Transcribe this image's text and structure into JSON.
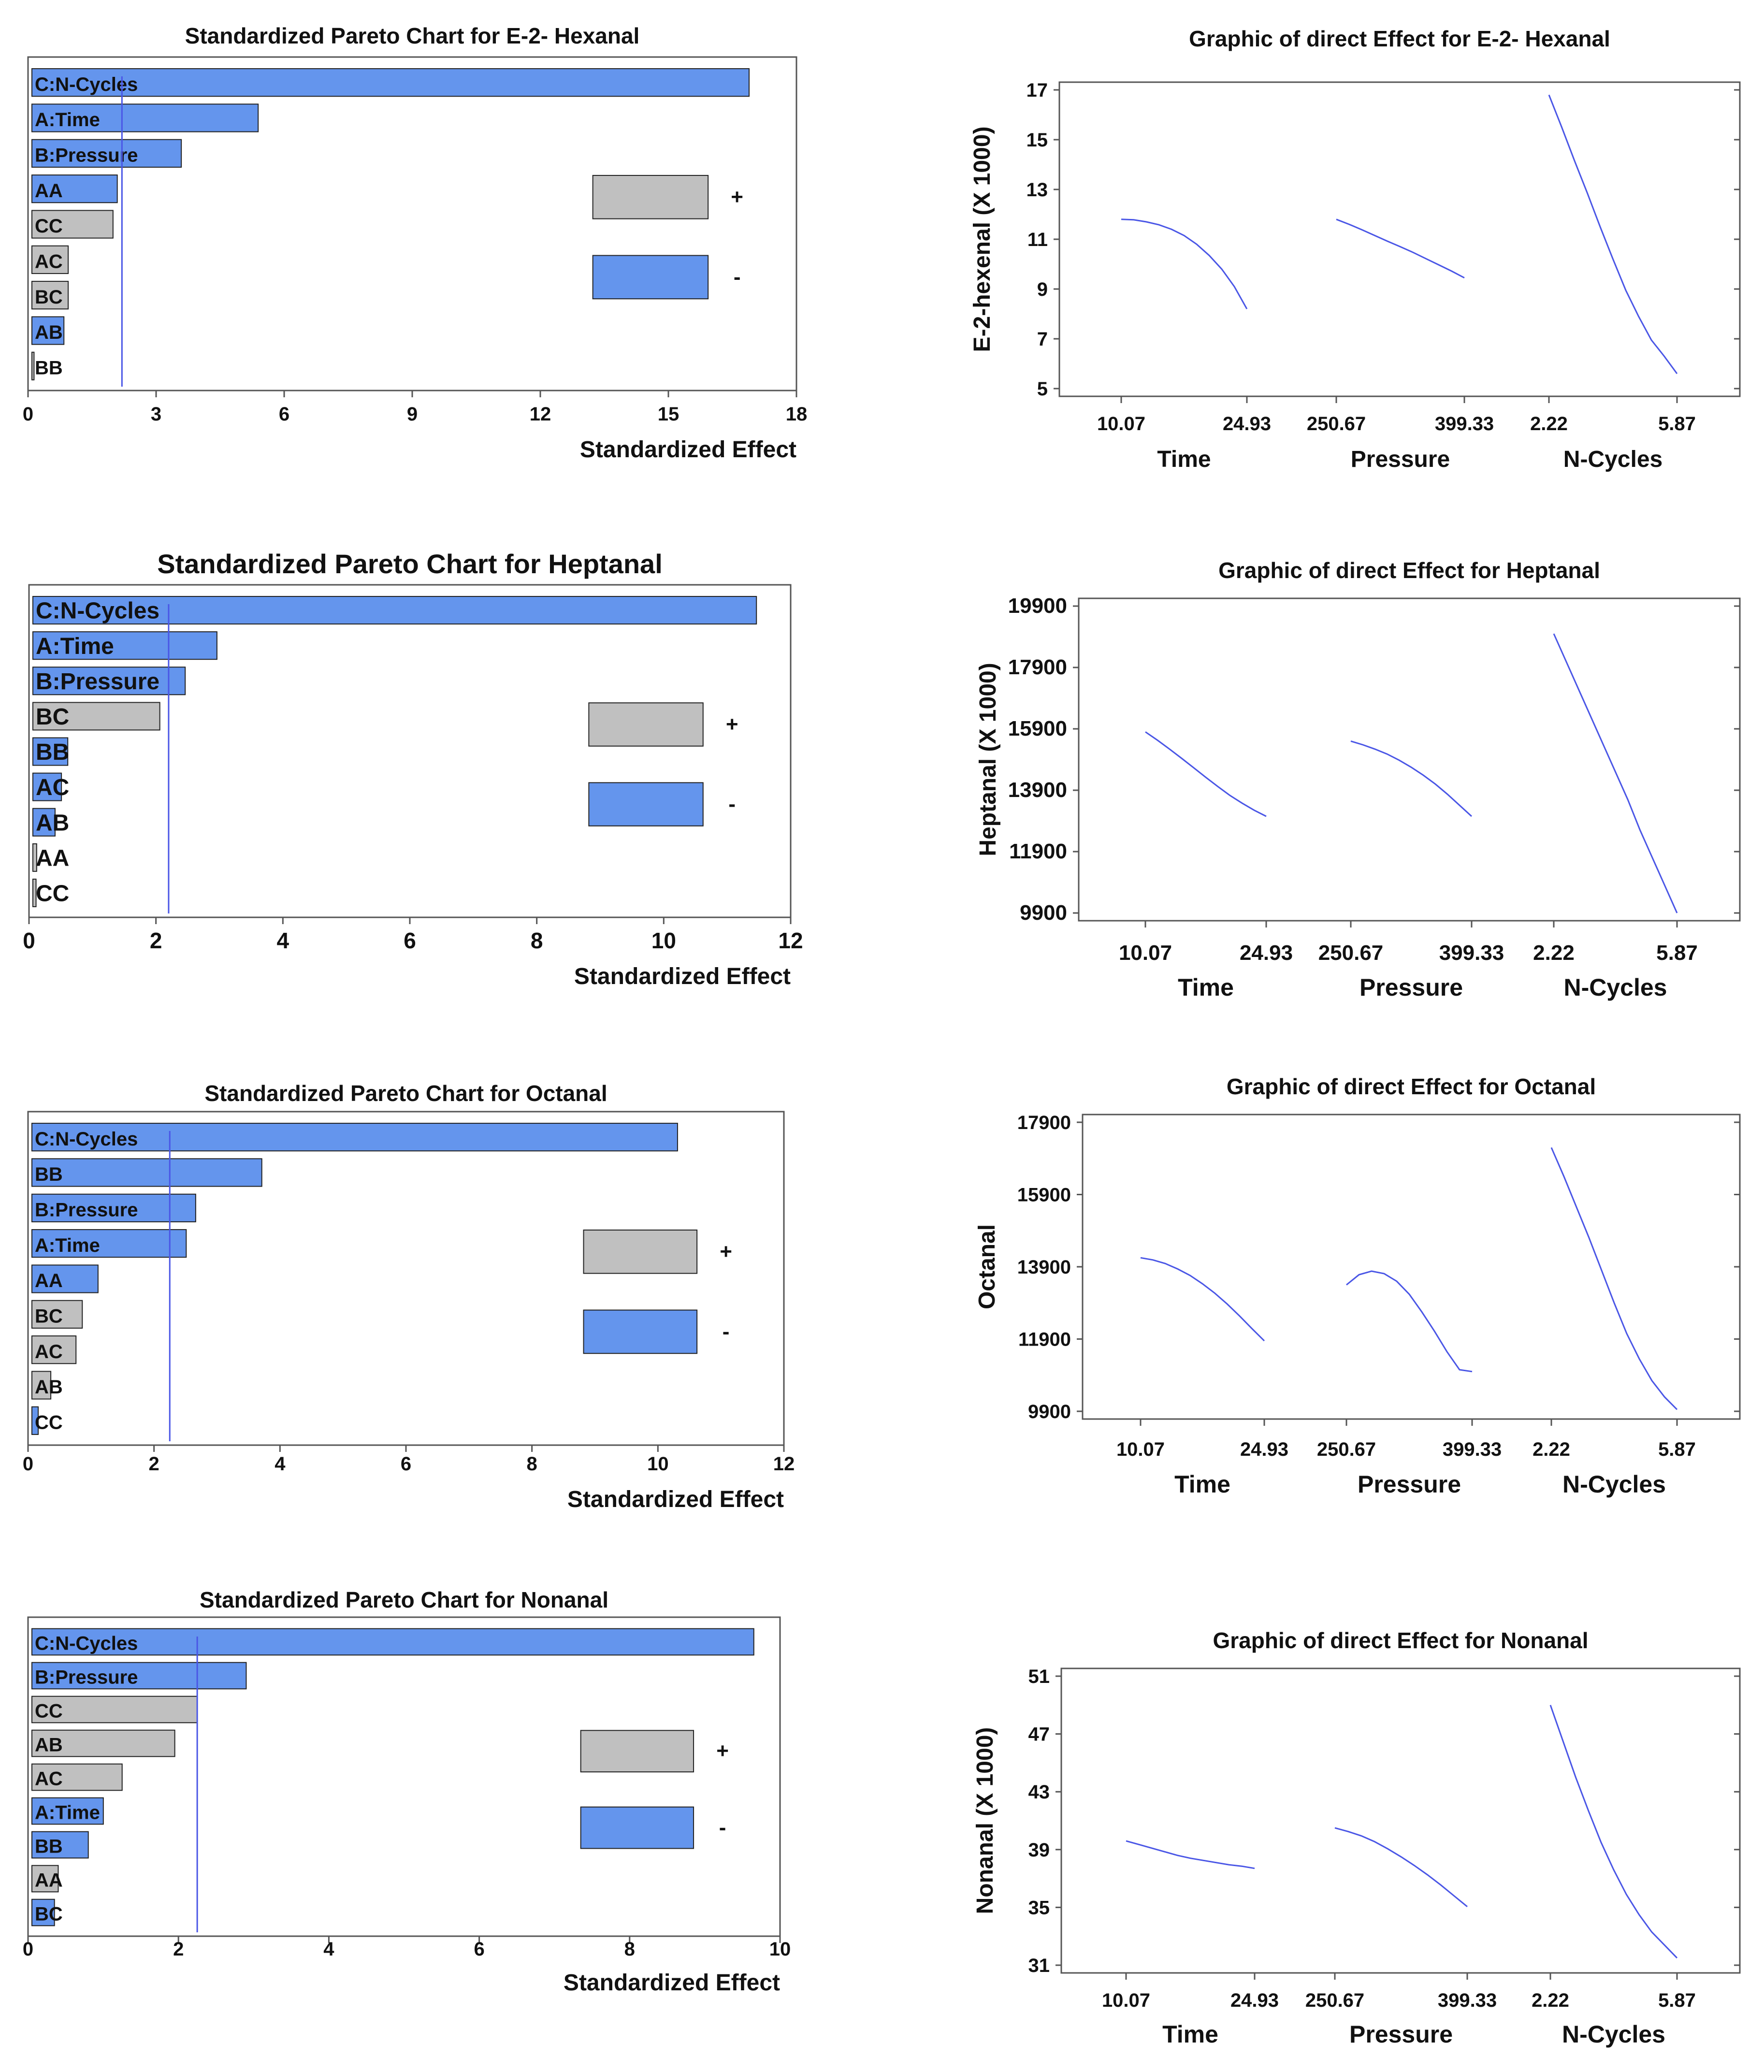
{
  "colors": {
    "positive": "#c0c0c0",
    "negative": "#6495ed",
    "line": "#4a56e6",
    "axis": "#555555",
    "text": "#111111"
  },
  "chart_data": [
    {
      "type": "bar",
      "kind": "pareto",
      "title": "Standardized Pareto Chart for  E-2- Hexanal",
      "xlabel": "Standardized Effect",
      "xlim": [
        0,
        18
      ],
      "xticks": [
        0,
        3,
        6,
        9,
        12,
        15,
        18
      ],
      "xtick_labels": [
        "0",
        "3",
        "6",
        "9",
        "12",
        "15",
        "18"
      ],
      "reference_line": 2.2,
      "categories": [
        "C:N-Cycles",
        "A:Time",
        "B:Pressure",
        "AA",
        "CC",
        "AC",
        "BC",
        "AB",
        "BB"
      ],
      "values": [
        16.8,
        5.3,
        3.5,
        2.0,
        1.9,
        0.85,
        0.85,
        0.75,
        0.05
      ],
      "signs": [
        "-",
        "-",
        "-",
        "-",
        "+",
        "+",
        "+",
        "-",
        "+"
      ],
      "legend": [
        {
          "sign": "+",
          "label": "+"
        },
        {
          "sign": "-",
          "label": "-"
        }
      ]
    },
    {
      "type": "line",
      "kind": "main-effects",
      "title": "Graphic of direct Effect for  E-2- Hexanal",
      "ylabel": "E-2-hexenal (X 1000)",
      "ylim": [
        5,
        17
      ],
      "yticks": [
        5,
        7,
        9,
        11,
        13,
        15,
        17
      ],
      "ytick_labels": [
        "5",
        "7",
        "9",
        "11",
        "13",
        "15",
        "17"
      ],
      "factors": [
        {
          "name": "Time",
          "low": "10.07",
          "high": "24.93",
          "y": [
            11.8,
            11.78,
            11.7,
            11.58,
            11.4,
            11.15,
            10.8,
            10.35,
            9.8,
            9.1,
            8.2
          ]
        },
        {
          "name": "Pressure",
          "low": "250.67",
          "high": "399.33",
          "y": [
            11.8,
            11.6,
            11.38,
            11.15,
            10.92,
            10.7,
            10.47,
            10.22,
            9.97,
            9.72,
            9.45
          ]
        },
        {
          "name": "N-Cycles",
          "low": "2.22",
          "high": "5.87",
          "y": [
            16.8,
            15.5,
            14.15,
            12.85,
            11.5,
            10.2,
            8.95,
            7.9,
            6.95,
            6.3,
            5.6
          ]
        }
      ]
    },
    {
      "type": "bar",
      "kind": "pareto",
      "title": "Standardized Pareto Chart for  Heptanal",
      "xlabel": "Standardized Effect",
      "xlim": [
        0,
        12
      ],
      "xticks": [
        0,
        2,
        4,
        6,
        8,
        10,
        12
      ],
      "xtick_labels": [
        "0",
        "2",
        "4",
        "6",
        "8",
        "10",
        "12"
      ],
      "reference_line": 2.2,
      "categories": [
        "C:N-Cycles",
        "A:Time",
        "B:Pressure",
        "BC",
        "BB",
        "AC",
        "AB",
        "AA",
        "CC"
      ],
      "values": [
        11.4,
        2.9,
        2.4,
        2.0,
        0.55,
        0.45,
        0.35,
        0.06,
        0.05
      ],
      "signs": [
        "-",
        "-",
        "-",
        "+",
        "-",
        "-",
        "-",
        "+",
        "+"
      ],
      "legend": [
        {
          "sign": "+",
          "label": "+"
        },
        {
          "sign": "-",
          "label": "-"
        }
      ]
    },
    {
      "type": "line",
      "kind": "main-effects",
      "title": "Graphic of direct Effect for  Heptanal",
      "ylabel": "Heptanal (X 1000)",
      "ylim": [
        9900,
        19900
      ],
      "yticks": [
        9900,
        11900,
        13900,
        15900,
        17900,
        19900
      ],
      "ytick_labels": [
        "9900",
        "11900",
        "13900",
        "15900",
        "17900",
        "19900"
      ],
      "factors": [
        {
          "name": "Time",
          "low": "10.07",
          "high": "24.93",
          "y": [
            15.8,
            15.53,
            15.24,
            14.94,
            14.63,
            14.32,
            14.02,
            13.73,
            13.48,
            13.25,
            13.05
          ]
        },
        {
          "name": "Pressure",
          "low": "250.67",
          "high": "399.33",
          "y": [
            15.5,
            15.38,
            15.24,
            15.08,
            14.88,
            14.65,
            14.39,
            14.1,
            13.77,
            13.41,
            13.05
          ]
        },
        {
          "name": "N-Cycles",
          "low": "2.22",
          "high": "5.87",
          "y": [
            19.0,
            18.1,
            17.2,
            16.3,
            15.4,
            14.5,
            13.6,
            12.6,
            11.7,
            10.8,
            9.9
          ]
        }
      ]
    },
    {
      "type": "bar",
      "kind": "pareto",
      "title": "Standardized Pareto Chart for  Octanal",
      "xlabel": "Standardized Effect",
      "xlim": [
        0,
        12
      ],
      "xticks": [
        0,
        2,
        4,
        6,
        8,
        10,
        12
      ],
      "xtick_labels": [
        "0",
        "2",
        "4",
        "6",
        "8",
        "10",
        "12"
      ],
      "reference_line": 2.25,
      "categories": [
        "C:N-Cycles",
        "BB",
        "B:Pressure",
        "A:Time",
        "AA",
        "BC",
        "AC",
        "AB",
        "CC"
      ],
      "values": [
        10.25,
        3.65,
        2.6,
        2.45,
        1.05,
        0.8,
        0.7,
        0.3,
        0.1
      ],
      "signs": [
        "-",
        "-",
        "-",
        "-",
        "-",
        "+",
        "+",
        "+",
        "-"
      ],
      "legend": [
        {
          "sign": "+",
          "label": "+"
        },
        {
          "sign": "-",
          "label": "-"
        }
      ]
    },
    {
      "type": "line",
      "kind": "main-effects",
      "title": "Graphic of direct Effect for  Octanal",
      "ylabel": "Octanal",
      "ylim": [
        9900,
        17900
      ],
      "yticks": [
        9900,
        11900,
        13900,
        15900,
        17900
      ],
      "ytick_labels": [
        "9900",
        "11900",
        "13900",
        "15900",
        "17900"
      ],
      "factors": [
        {
          "name": "Time",
          "low": "10.07",
          "high": "24.93",
          "y": [
            14.15,
            14.09,
            13.99,
            13.84,
            13.66,
            13.43,
            13.17,
            12.87,
            12.54,
            12.19,
            11.85
          ]
        },
        {
          "name": "Pressure",
          "low": "250.67",
          "high": "399.33",
          "y": [
            13.4,
            13.68,
            13.78,
            13.71,
            13.5,
            13.14,
            12.65,
            12.12,
            11.55,
            11.05,
            11.0
          ]
        },
        {
          "name": "N-Cycles",
          "low": "2.22",
          "high": "5.87",
          "y": [
            17.2,
            16.4,
            15.55,
            14.7,
            13.8,
            12.9,
            12.05,
            11.35,
            10.75,
            10.3,
            9.95
          ]
        }
      ]
    },
    {
      "type": "bar",
      "kind": "pareto",
      "title": "Standardized Pareto Chart for  Nonanal",
      "xlabel": "Standardized Effect",
      "xlim": [
        0,
        10
      ],
      "xticks": [
        0,
        2,
        4,
        6,
        8,
        10
      ],
      "xtick_labels": [
        "0",
        "2",
        "4",
        "6",
        "8",
        "10"
      ],
      "reference_line": 2.25,
      "categories": [
        "C:N-Cycles",
        "B:Pressure",
        "CC",
        "AB",
        "AC",
        "A:Time",
        "BB",
        "AA",
        "BC"
      ],
      "values": [
        9.6,
        2.85,
        2.2,
        1.9,
        1.2,
        0.95,
        0.75,
        0.35,
        0.3
      ],
      "signs": [
        "-",
        "-",
        "+",
        "+",
        "+",
        "-",
        "-",
        "+",
        "-"
      ],
      "legend": [
        {
          "sign": "+",
          "label": "+"
        },
        {
          "sign": "-",
          "label": "-"
        }
      ]
    },
    {
      "type": "line",
      "kind": "main-effects",
      "title": "Graphic of direct Effect for  Nonanal",
      "ylabel": "Nonanal (X 1000)",
      "ylim": [
        31,
        51
      ],
      "yticks": [
        31,
        35,
        39,
        43,
        47,
        51
      ],
      "ytick_labels": [
        "31",
        "35",
        "39",
        "43",
        "47",
        "51"
      ],
      "factors": [
        {
          "name": "Time",
          "low": "10.07",
          "high": "24.93",
          "y": [
            39.6,
            39.35,
            39.1,
            38.85,
            38.6,
            38.4,
            38.25,
            38.1,
            37.95,
            37.85,
            37.7
          ]
        },
        {
          "name": "Pressure",
          "low": "250.67",
          "high": "399.33",
          "y": [
            40.5,
            40.25,
            39.95,
            39.55,
            39.05,
            38.5,
            37.9,
            37.25,
            36.55,
            35.8,
            35.05
          ]
        },
        {
          "name": "N-Cycles",
          "low": "2.22",
          "high": "5.87",
          "y": [
            49.0,
            46.5,
            44.0,
            41.7,
            39.5,
            37.6,
            35.9,
            34.5,
            33.3,
            32.4,
            31.5
          ]
        }
      ]
    }
  ]
}
